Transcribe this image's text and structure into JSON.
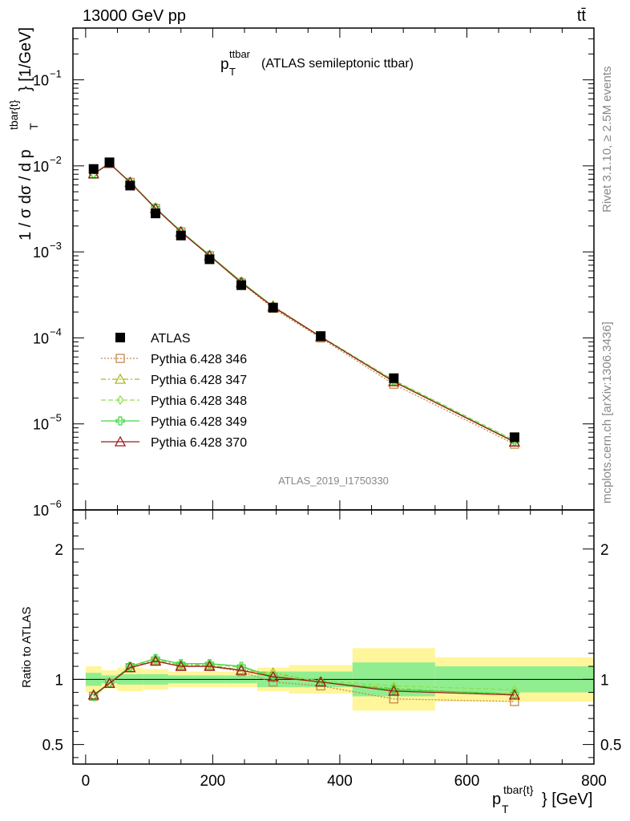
{
  "header": {
    "left": "13000 GeV pp",
    "right": "tt̄"
  },
  "plot_title": {
    "main": "p",
    "main_sub": "T",
    "main_sup": "ttbar",
    "rest": "(ATLAS semileptonic ttbar)"
  },
  "side_labels": {
    "rivet": "Rivet 3.1.10, ≥ 2.5M events",
    "mcplots": "mcplots.cern.ch [arXiv:1306.3436]"
  },
  "watermark": "ATLAS_2019_I1750330",
  "y_axis_label": {
    "pre": "1 / σ dσ / d p",
    "sub": "T",
    "sup": "tbar{t}",
    "post": "} [1/GeV]"
  },
  "x_axis_label": {
    "pre": "p",
    "sub": "T",
    "sup": "tbar{t}",
    "post": "} [GeV]"
  },
  "ratio_label": "Ratio to ATLAS",
  "legend": [
    {
      "label": "ATLAS",
      "color": "#000000",
      "marker": "square-filled",
      "dash": ""
    },
    {
      "label": "Pythia 6.428 346",
      "color": "#c08a4a",
      "marker": "square-open",
      "dash": "2,2"
    },
    {
      "label": "Pythia 6.428 347",
      "color": "#a8b820",
      "marker": "triangle-open",
      "dash": "6,3,2,3"
    },
    {
      "label": "Pythia 6.428 348",
      "color": "#8ee050",
      "marker": "diamond-open",
      "dash": "6,3"
    },
    {
      "label": "Pythia 6.428 349",
      "color": "#40d840",
      "marker": "cross-open",
      "dash": ""
    },
    {
      "label": "Pythia 6.428 370",
      "color": "#9b1b1b",
      "marker": "triangle-open",
      "dash": ""
    }
  ],
  "chart_data": {
    "type": "line",
    "main": {
      "xlim": [
        -20,
        800
      ],
      "ylim": [
        1e-06,
        0.4
      ],
      "log_y": true,
      "x_ticks": [
        0,
        200,
        400,
        600,
        800
      ],
      "y_ticks": [
        {
          "value": 0.1,
          "label": "10",
          "exp": "−1"
        },
        {
          "value": 0.01,
          "label": "10",
          "exp": "−2"
        },
        {
          "value": 0.001,
          "label": "10",
          "exp": "−3"
        },
        {
          "value": 0.0001,
          "label": "10",
          "exp": "−4"
        },
        {
          "value": 1e-05,
          "label": "10",
          "exp": "−5"
        },
        {
          "value": 1e-06,
          "label": "10",
          "exp": "−6"
        }
      ]
    },
    "ratio": {
      "xlim": [
        -20,
        800
      ],
      "ylim": [
        0.35,
        2.3
      ],
      "y_ticks": [
        {
          "value": 0.5,
          "label": "0.5"
        },
        {
          "value": 1,
          "label": "1"
        },
        {
          "value": 2,
          "label": "2"
        }
      ]
    },
    "x": [
      12.5,
      37.5,
      70,
      110,
      150,
      195,
      245,
      295,
      370,
      485,
      675
    ],
    "bins": [
      [
        0,
        25
      ],
      [
        25,
        50
      ],
      [
        50,
        90
      ],
      [
        90,
        130
      ],
      [
        130,
        170
      ],
      [
        170,
        220
      ],
      [
        220,
        270
      ],
      [
        270,
        320
      ],
      [
        320,
        420
      ],
      [
        420,
        550
      ],
      [
        550,
        800
      ]
    ],
    "data": {
      "name": "ATLAS",
      "values": [
        0.0092,
        0.011,
        0.0059,
        0.0028,
        0.00155,
        0.00082,
        0.00041,
        0.000225,
        0.000105,
        3.4e-05,
        7e-06
      ],
      "band_inner": [
        0.05,
        0.03,
        0.04,
        0.04,
        0.03,
        0.03,
        0.03,
        0.06,
        0.06,
        0.13,
        0.1
      ],
      "band_outer": [
        0.1,
        0.07,
        0.09,
        0.08,
        0.06,
        0.06,
        0.06,
        0.09,
        0.11,
        0.24,
        0.17
      ]
    },
    "series": [
      {
        "name": "Pythia 6.428 346",
        "ratio": [
          0.87,
          0.97,
          1.09,
          1.14,
          1.1,
          1.1,
          1.06,
          0.98,
          0.95,
          0.85,
          0.83
        ]
      },
      {
        "name": "Pythia 6.428 347",
        "ratio": [
          0.88,
          0.97,
          1.09,
          1.15,
          1.11,
          1.11,
          1.07,
          1.05,
          0.98,
          0.93,
          0.88
        ]
      },
      {
        "name": "Pythia 6.428 348",
        "ratio": [
          0.87,
          0.97,
          1.1,
          1.16,
          1.12,
          1.12,
          1.09,
          1.03,
          0.99,
          0.95,
          0.92
        ]
      },
      {
        "name": "Pythia 6.428 349",
        "ratio": [
          0.87,
          0.97,
          1.1,
          1.16,
          1.12,
          1.12,
          1.1,
          1.02,
          0.98,
          0.92,
          0.89
        ]
      },
      {
        "name": "Pythia 6.428 370",
        "ratio": [
          0.88,
          0.97,
          1.09,
          1.14,
          1.1,
          1.1,
          1.07,
          1.02,
          0.98,
          0.91,
          0.88
        ]
      }
    ]
  }
}
